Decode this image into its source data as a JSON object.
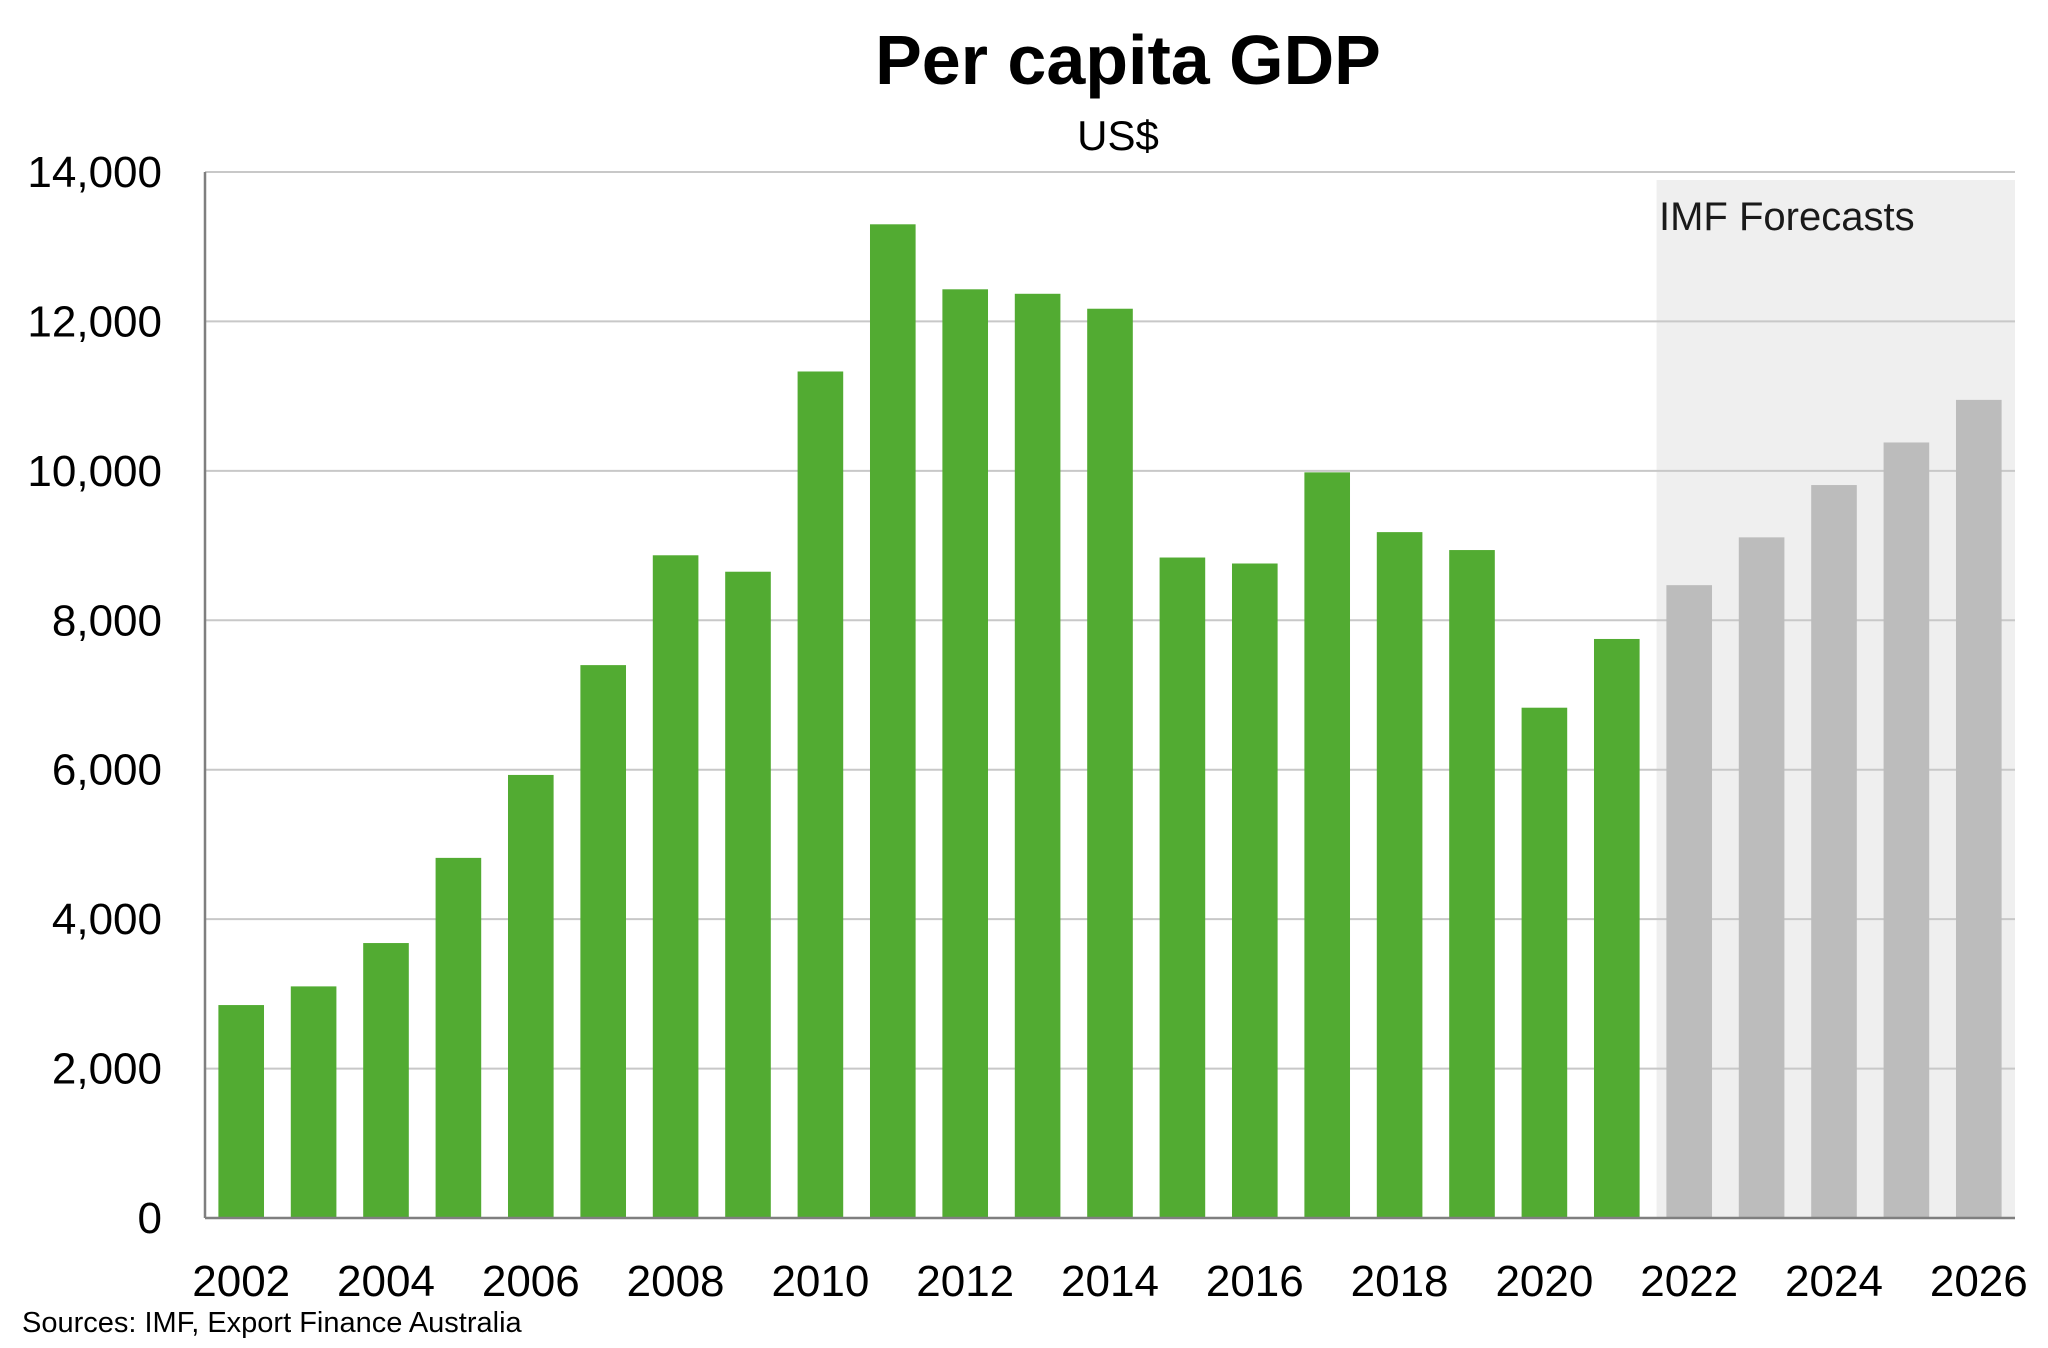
{
  "chart_data": {
    "type": "bar",
    "title": "Per capita GDP",
    "subtitle": "US$",
    "xlabel": "",
    "ylabel": "",
    "ylim": [
      0,
      14000
    ],
    "yticks": [
      "0",
      "2,000",
      "4,000",
      "6,000",
      "8,000",
      "10,000",
      "12,000",
      "14,000"
    ],
    "ytick_values": [
      0,
      2000,
      4000,
      6000,
      8000,
      10000,
      12000,
      14000
    ],
    "xtick_labels": [
      "2002",
      "2004",
      "2006",
      "2008",
      "2010",
      "2012",
      "2014",
      "2016",
      "2018",
      "2020",
      "2022",
      "2024",
      "2026"
    ],
    "grid": true,
    "categories": [
      2002,
      2003,
      2004,
      2005,
      2006,
      2007,
      2008,
      2009,
      2010,
      2011,
      2012,
      2013,
      2014,
      2015,
      2016,
      2017,
      2018,
      2019,
      2020,
      2021,
      2022,
      2023,
      2024,
      2025,
      2026
    ],
    "values": [
      2850,
      3100,
      3680,
      4820,
      5930,
      7400,
      8870,
      8650,
      11330,
      13300,
      12430,
      12370,
      12170,
      8840,
      8760,
      9980,
      9180,
      8940,
      6830,
      7750,
      8470,
      9110,
      9810,
      10380,
      10950
    ],
    "forecast_start": 2022,
    "colors": {
      "actual": "#52ab32",
      "forecast": "#bcbcbc",
      "forecast_band": "#efefef",
      "grid": "#c8c8c8"
    },
    "annotation": "IMF Forecasts",
    "source": "Sources: IMF, Export Finance Australia"
  }
}
